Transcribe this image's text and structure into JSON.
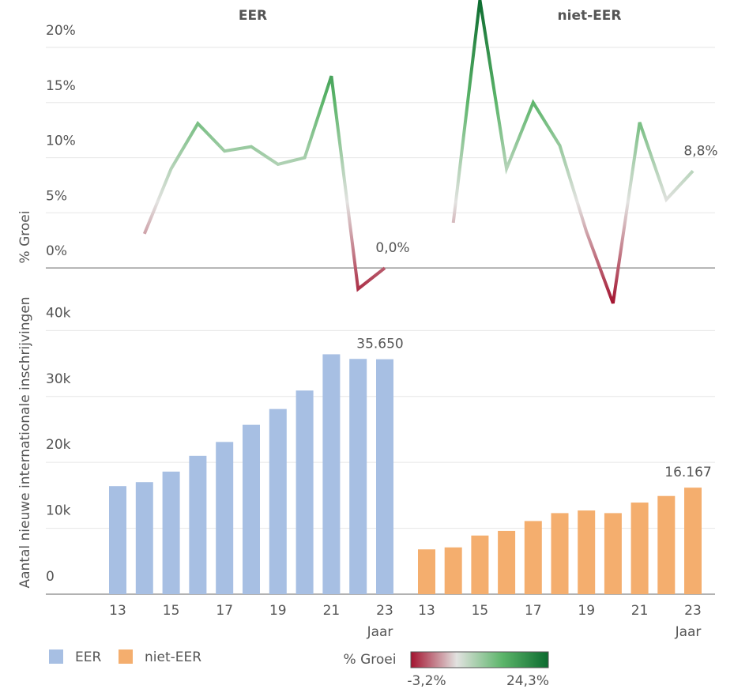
{
  "chart_data": [
    {
      "type": "line",
      "ylabel": "% Groei",
      "ylim": [
        -4,
        24.3
      ],
      "yticks": [
        {
          "value": 0,
          "label": "0%"
        },
        {
          "value": 5,
          "label": "5%"
        },
        {
          "value": 10,
          "label": "10%"
        },
        {
          "value": 15,
          "label": "15%"
        },
        {
          "value": 20,
          "label": "20%"
        }
      ],
      "grid": true,
      "series": [
        {
          "name": "EER",
          "values": [
            null,
            3.1,
            9.0,
            13.1,
            10.6,
            11.0,
            9.4,
            10.0,
            17.4,
            -1.9,
            0.0
          ],
          "value_labels": [
            null,
            null,
            null,
            null,
            null,
            null,
            null,
            null,
            null,
            null,
            "0,0%"
          ]
        },
        {
          "name": "niet-EER",
          "values": [
            null,
            4.1,
            24.3,
            9.0,
            15.0,
            11.1,
            3.3,
            -3.2,
            13.2,
            6.2,
            8.8
          ],
          "value_labels": [
            null,
            null,
            null,
            null,
            null,
            null,
            null,
            null,
            null,
            null,
            "8,8%"
          ]
        }
      ],
      "colorscale": {
        "title": "% Groei",
        "min": -3.2,
        "max": 24.3,
        "min_label": "-3,2%",
        "max_label": "24,3%",
        "colors": [
          "#a3132f",
          "#e2e2e0",
          "#5cb56a",
          "#0c6b2f"
        ]
      }
    },
    {
      "type": "bar",
      "ylabel": "Aantal nieuwe internationale inschrijvingen",
      "xlabel": "Jaar",
      "categories": [
        "13",
        null,
        "15",
        null,
        "17",
        null,
        "19",
        null,
        "21",
        null,
        "23"
      ],
      "ylim": [
        0,
        44000
      ],
      "yticks": [
        0,
        {
          "value": 10000,
          "label": "10k"
        },
        {
          "value": 20000,
          "label": "20k"
        },
        {
          "value": 30000,
          "label": "30k"
        },
        {
          "value": 40000,
          "label": "40k"
        }
      ],
      "grid": true,
      "series": [
        {
          "name": "EER",
          "color": "#a7bfe3",
          "values": [
            16400,
            17000,
            18600,
            21000,
            23100,
            25700,
            28100,
            30900,
            36400,
            35700,
            35650
          ],
          "value_labels": [
            null,
            null,
            null,
            null,
            null,
            null,
            null,
            null,
            null,
            null,
            "35.650"
          ]
        },
        {
          "name": "niet-EER",
          "color": "#f4ae6e",
          "values": [
            6800,
            7100,
            8900,
            9600,
            11100,
            12300,
            12700,
            12300,
            13900,
            14900,
            16167
          ],
          "value_labels": [
            null,
            null,
            null,
            null,
            null,
            null,
            null,
            null,
            null,
            null,
            "16.167"
          ]
        }
      ]
    }
  ]
}
